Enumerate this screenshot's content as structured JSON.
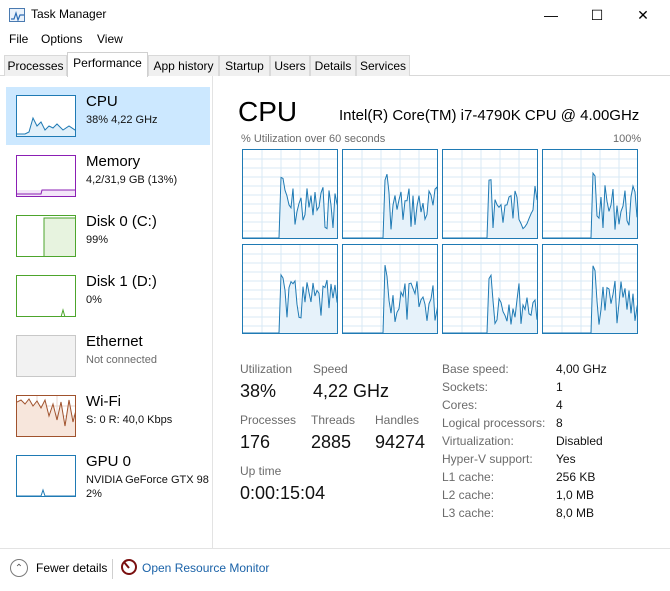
{
  "window": {
    "title": "Task Manager"
  },
  "menu": [
    "File",
    "Options",
    "View"
  ],
  "tabs": [
    "Processes",
    "Performance",
    "App history",
    "Startup",
    "Users",
    "Details",
    "Services"
  ],
  "active_tab": "Performance",
  "sidebar": [
    {
      "title": "CPU",
      "sub": "38% 4,22 GHz",
      "color": "#1f7ab4",
      "icon": "cpu-graph-icon",
      "active": true
    },
    {
      "title": "Memory",
      "sub": "4,2/31,9 GB (13%)",
      "color": "#8b1fb4",
      "icon": "memory-graph-icon"
    },
    {
      "title": "Disk 0 (C:)",
      "sub": "99%",
      "color": "#4da52c",
      "icon": "disk-graph-icon"
    },
    {
      "title": "Disk 1 (D:)",
      "sub": "0%",
      "color": "#4da52c",
      "icon": "disk-graph-icon"
    },
    {
      "title": "Ethernet",
      "sub": "Not connected",
      "color": "#a0a0a0",
      "icon": "ethernet-graph-icon"
    },
    {
      "title": "Wi-Fi",
      "sub": "S: 0 R: 40,0 Kbps",
      "color": "#a0522d",
      "icon": "wifi-graph-icon"
    },
    {
      "title": "GPU 0",
      "sub": "NVIDIA GeForce GTX 98",
      "sub2": "2%",
      "color": "#1f7ab4",
      "icon": "gpu-graph-icon"
    }
  ],
  "main": {
    "title": "CPU",
    "cpu_name": "Intel(R) Core(TM) i7-4790K CPU @ 4.00GHz",
    "util_label": "% Utilization over 60 seconds",
    "util_max": "100%",
    "stats": {
      "utilization_label": "Utilization",
      "utilization": "38%",
      "speed_label": "Speed",
      "speed": "4,22 GHz",
      "processes_label": "Processes",
      "processes": "176",
      "threads_label": "Threads",
      "threads": "2885",
      "handles_label": "Handles",
      "handles": "94274",
      "uptime_label": "Up time",
      "uptime": "0:00:15:04"
    },
    "info": [
      {
        "label": "Base speed:",
        "value": "4,00 GHz"
      },
      {
        "label": "Sockets:",
        "value": "1"
      },
      {
        "label": "Cores:",
        "value": "4"
      },
      {
        "label": "Logical processors:",
        "value": "8"
      },
      {
        "label": "Virtualization:",
        "value": "Disabled"
      },
      {
        "label": "Hyper-V support:",
        "value": "Yes"
      },
      {
        "label": "L1 cache:",
        "value": "256 KB"
      },
      {
        "label": "L2 cache:",
        "value": "1,0 MB"
      },
      {
        "label": "L3 cache:",
        "value": "8,0 MB"
      }
    ]
  },
  "footer": {
    "fewer_details": "Fewer details",
    "resource_monitor": "Open Resource Monitor"
  },
  "colors": {
    "accent": "#1f7ab4",
    "selected": "#cce8ff",
    "link": "#1a62a8"
  }
}
